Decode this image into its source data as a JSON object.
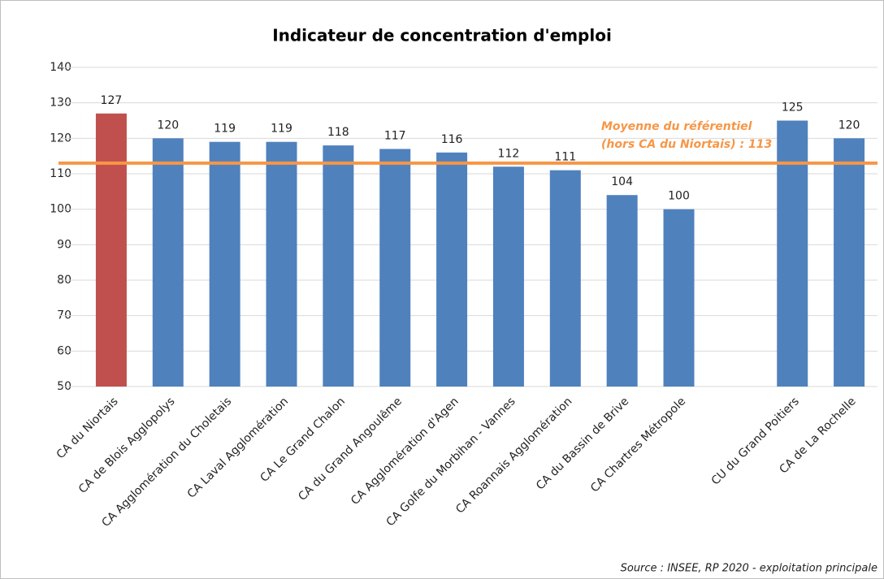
{
  "chart_data": {
    "type": "bar",
    "title": "Indicateur de concentration d'emploi",
    "categories": [
      "CA du Niortais",
      "CA de Blois Agglopolys",
      "CA Agglomération du Choletais",
      "CA Laval Agglomération",
      "CA Le Grand Chalon",
      "CA du Grand Angoulême",
      "CA Agglomération d'Agen",
      "CA Golfe du Morbihan - Vannes",
      "CA Roannais Agglomération",
      "CA du Bassin de Brive",
      "CA Chartres Métropole",
      null,
      "CU du Grand Poitiers",
      "CA de La Rochelle"
    ],
    "values": [
      127,
      120,
      119,
      119,
      118,
      117,
      116,
      112,
      111,
      104,
      100,
      null,
      125,
      120
    ],
    "colors": [
      "#c0504d",
      "#4f81bd",
      "#4f81bd",
      "#4f81bd",
      "#4f81bd",
      "#4f81bd",
      "#4f81bd",
      "#4f81bd",
      "#4f81bd",
      "#4f81bd",
      "#4f81bd",
      null,
      "#4f81bd",
      "#4f81bd"
    ],
    "ylim": [
      50,
      140
    ],
    "yticks": [
      50,
      60,
      70,
      80,
      90,
      100,
      110,
      120,
      130,
      140
    ],
    "grid": true,
    "reference_line": {
      "value": 113,
      "color": "#f79646",
      "label": [
        "Moyenne du référentiel",
        "(hors CA du Niortais) : 113"
      ]
    },
    "source": "Source : INSEE, RP 2020 - exploitation principale"
  }
}
